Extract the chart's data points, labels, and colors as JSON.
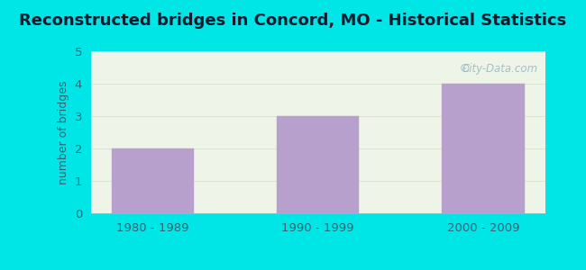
{
  "title": "Reconstructed bridges in Concord, MO - Historical Statistics",
  "categories": [
    "1980 - 1989",
    "1990 - 1999",
    "2000 - 2009"
  ],
  "values": [
    2,
    3,
    4
  ],
  "bar_color": "#b8a0cc",
  "bar_edge_color": "#b8a0cc",
  "ylabel": "number of bridges",
  "ylabel_color": "#336677",
  "xlabel_color": "#336677",
  "title_color": "#1a1a2e",
  "ylim": [
    0,
    5
  ],
  "yticks": [
    0,
    1,
    2,
    3,
    4,
    5
  ],
  "background_outer": "#00e5e5",
  "background_plot": "#eef5e8",
  "grid_color": "#d8e8d0",
  "title_fontsize": 13,
  "label_fontsize": 9,
  "tick_fontsize": 9.5,
  "watermark": "City-Data.com"
}
